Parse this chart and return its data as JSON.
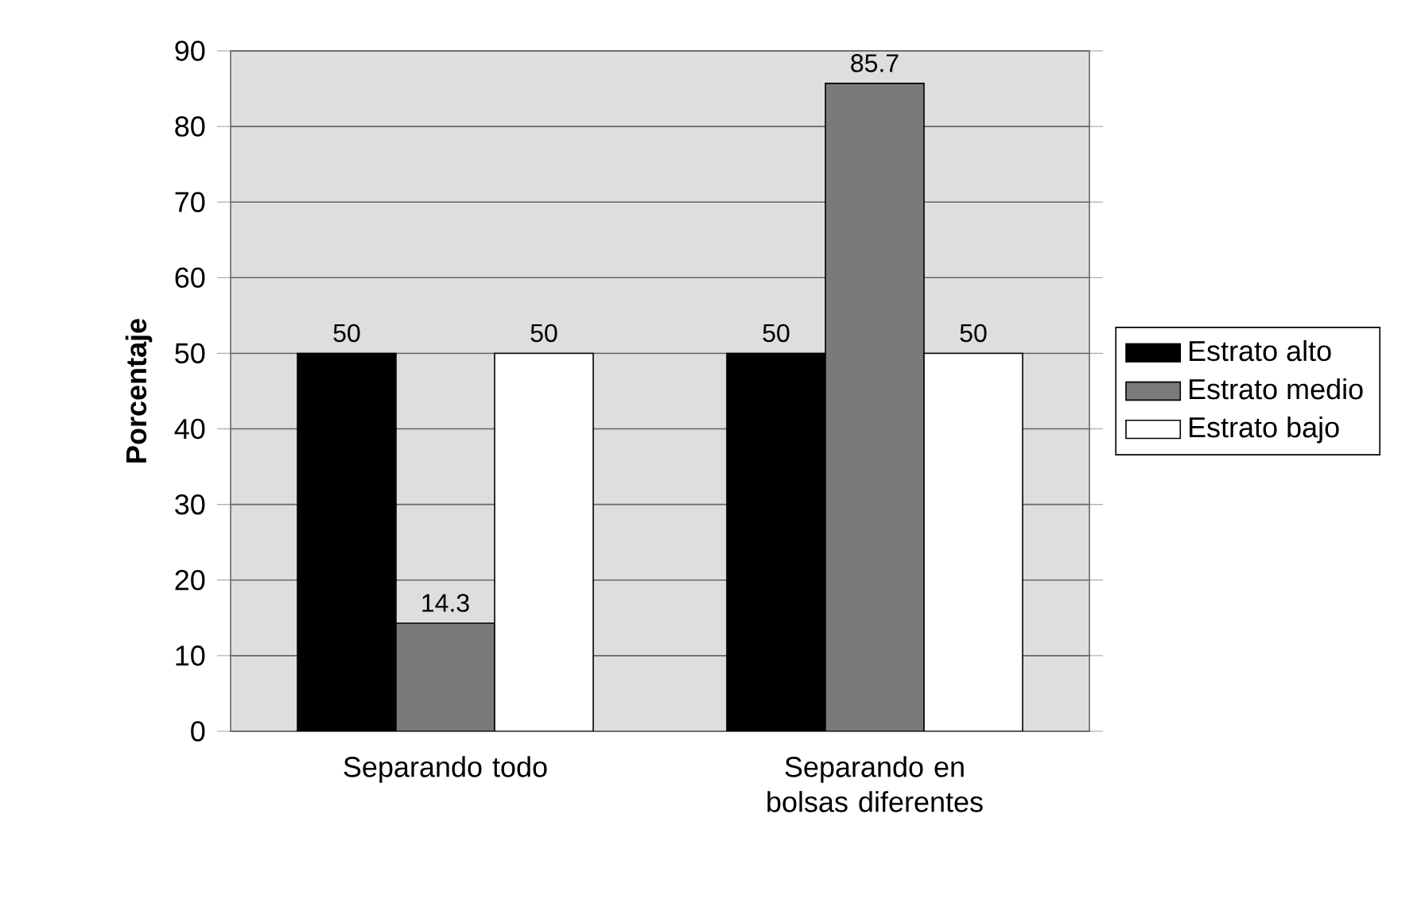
{
  "chart_data": {
    "type": "bar",
    "ylabel": "Porcentaje",
    "categories": [
      "Separando todo",
      "Separando en bolsas diferentes"
    ],
    "series": [
      {
        "name": "Estrato alto",
        "color": "#000000",
        "values": [
          50,
          50
        ]
      },
      {
        "name": "Estrato medio",
        "color": "#7a7a7a",
        "values": [
          14.3,
          85.7
        ]
      },
      {
        "name": "Estrato bajo",
        "color": "#ffffff",
        "values": [
          50,
          50
        ]
      }
    ],
    "ylim": [
      0,
      90
    ],
    "yticks": [
      0,
      10,
      20,
      30,
      40,
      50,
      60,
      70,
      80,
      90
    ],
    "grid": "y",
    "legend": "right",
    "data_labels": true
  }
}
